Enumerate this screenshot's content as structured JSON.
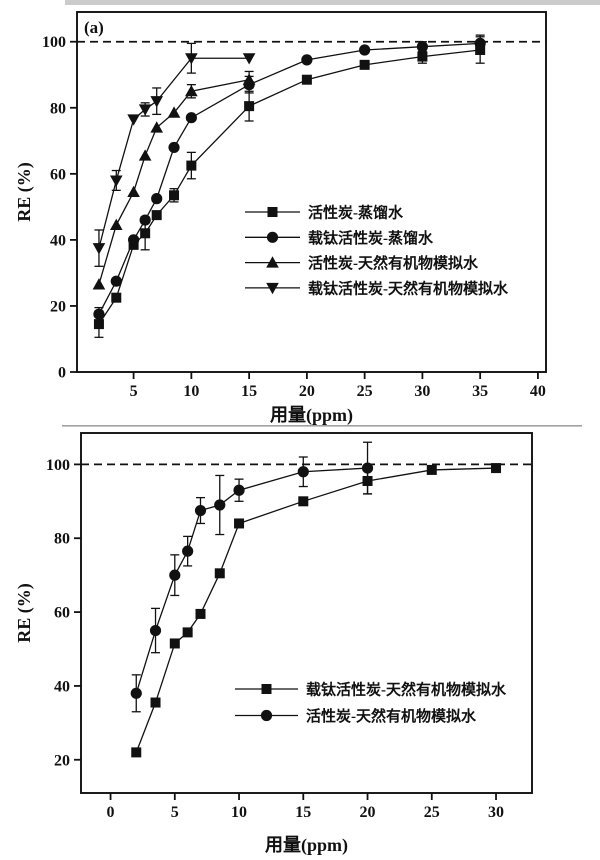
{
  "figure_title": "RE vs dosage adsorption performance figure",
  "colors": {
    "line": "#111111",
    "marker": "#111111",
    "legend_text": "#e60000",
    "axis": "#111111"
  },
  "chart_data": [
    {
      "type": "line",
      "panel_label": "(a)",
      "xlabel": "用量(ppm)",
      "ylabel": "RE (%)",
      "xticks": [
        5,
        10,
        15,
        20,
        25,
        30,
        35,
        40
      ],
      "yticks": [
        0,
        20,
        40,
        60,
        80,
        100
      ],
      "xlim": [
        0.1,
        40.7
      ],
      "ylim": [
        0,
        109
      ],
      "ref_line_y": 100,
      "ref_line_style": "dashed",
      "grid": false,
      "legend_position": "center-right-inside",
      "series": [
        {
          "name": "活性炭-蒸馏水",
          "marker": "square",
          "x": [
            2,
            3.5,
            5,
            6,
            7,
            8.5,
            10,
            15,
            20,
            25,
            30,
            35
          ],
          "y": [
            14.5,
            22.5,
            38.5,
            42,
            47.5,
            53.5,
            62.5,
            80.5,
            88.5,
            93,
            95.5,
            97.5
          ],
          "err": [
            4,
            0,
            0,
            5,
            0,
            2,
            4,
            4.5,
            0,
            0,
            2,
            4
          ]
        },
        {
          "name": "载钛活性炭-蒸馏水",
          "marker": "circle",
          "x": [
            2,
            3.5,
            5,
            6,
            7,
            8.5,
            10,
            15,
            20,
            25,
            30,
            35
          ],
          "y": [
            17.5,
            27.5,
            40,
            46,
            52.5,
            68,
            77,
            87,
            94.5,
            97.5,
            98.5,
            99.5
          ],
          "err": [
            2,
            0,
            0,
            0,
            0,
            0,
            0,
            2.5,
            0,
            0,
            1.5,
            2.5
          ]
        },
        {
          "name": "活性炭-天然有机物模拟水",
          "marker": "triangle-up",
          "x": [
            2,
            3.5,
            5,
            6,
            7,
            8.5,
            10,
            15
          ],
          "y": [
            26.5,
            44.5,
            54.5,
            65.5,
            74,
            78.5,
            85,
            88.5
          ],
          "err": [
            0,
            0,
            0,
            0,
            0,
            0,
            2,
            2.5
          ]
        },
        {
          "name": "载钛活性炭-天然有机物模拟水",
          "marker": "triangle-down",
          "x": [
            2,
            3.5,
            5,
            6,
            7,
            10,
            15
          ],
          "y": [
            37.5,
            58,
            76.5,
            79.5,
            82,
            95,
            95
          ],
          "err": [
            5.5,
            3,
            0,
            2,
            4,
            4.5,
            0
          ]
        }
      ]
    },
    {
      "type": "line",
      "panel_label": "",
      "xlabel": "用量(ppm)",
      "ylabel": "RE (%)",
      "xticks": [
        0,
        5,
        10,
        15,
        20,
        25,
        30
      ],
      "yticks": [
        20,
        40,
        60,
        80,
        100
      ],
      "xlim": [
        -2.3,
        32.8
      ],
      "ylim": [
        11,
        108.5
      ],
      "ref_line_y": 100,
      "ref_line_style": "dashed",
      "grid": false,
      "legend_position": "center-right-inside",
      "series": [
        {
          "name": "载钛活性炭-天然有机物模拟水",
          "marker": "square",
          "x": [
            2,
            3.5,
            5,
            6,
            7,
            8.5,
            10,
            15,
            20,
            25,
            30
          ],
          "y": [
            22,
            35.5,
            51.5,
            54.5,
            59.5,
            70.5,
            84,
            90,
            95.5,
            98.5,
            99
          ],
          "err": [
            0,
            0,
            0,
            0,
            0,
            0,
            0,
            0,
            3.5,
            0,
            0
          ]
        },
        {
          "name": "活性炭-天然有机物模拟水",
          "marker": "circle",
          "x": [
            2,
            3.5,
            5,
            6,
            7,
            8.5,
            10,
            15,
            20
          ],
          "y": [
            38,
            55,
            70,
            76.5,
            87.5,
            89,
            93,
            98,
            99
          ],
          "err": [
            5,
            6,
            5.5,
            4,
            3.5,
            8,
            3,
            4,
            7
          ]
        }
      ]
    }
  ]
}
